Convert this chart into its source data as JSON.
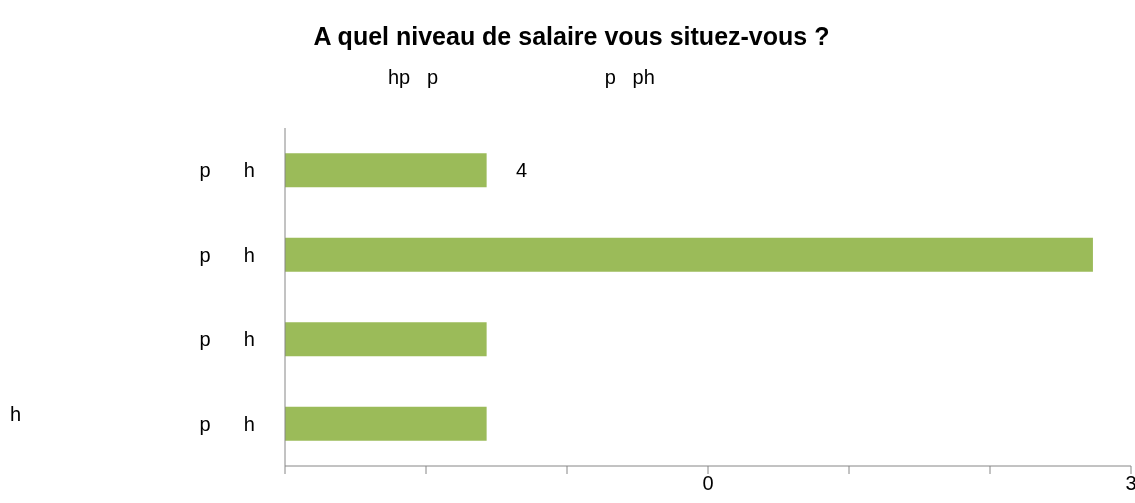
{
  "chart_data": {
    "type": "bar",
    "orientation": "horizontal",
    "title": "A quel niveau de salaire vous situez-vous ?",
    "subtitle": "hp   p                              p   ph",
    "categories": [
      "p      h",
      "p      h",
      "p      h",
      "p      h"
    ],
    "values": [
      1.43,
      5.73,
      1.43,
      1.43
    ],
    "base": [
      -3,
      -3,
      -3,
      -3
    ],
    "color": "#9bbb59",
    "xlim": [
      -3,
      3
    ],
    "xticks": [
      {
        "value": -3,
        "label": null
      },
      {
        "value": -2,
        "label": null
      },
      {
        "value": -1,
        "label": null
      },
      0,
      {
        "value": 1,
        "label": null
      },
      {
        "value": 2,
        "label": null
      },
      3
    ],
    "annotations": [
      "h",
      "4"
    ],
    "grid": false,
    "legend": false
  }
}
